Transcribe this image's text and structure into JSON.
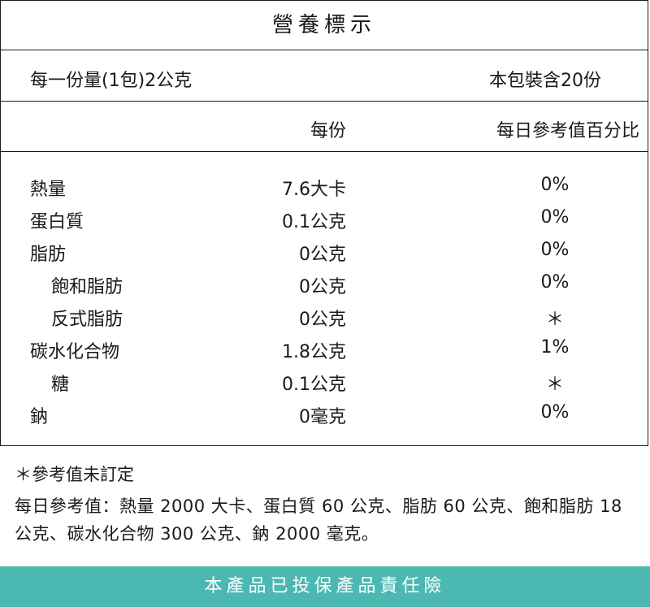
{
  "label": {
    "title": "營養標示",
    "serving_size": "每一份量(1包)2公克",
    "servings_per_package": "本包裝含20份",
    "col_per_serving": "每份",
    "col_daily_value": "每日參考值百分比",
    "nutrients": [
      {
        "name": "熱量",
        "amount": "7.6大卡",
        "dv": "0%",
        "indent": false
      },
      {
        "name": "蛋白質",
        "amount": "0.1公克",
        "dv": "0%",
        "indent": false
      },
      {
        "name": "脂肪",
        "amount": "0公克",
        "dv": "0%",
        "indent": false
      },
      {
        "name": "飽和脂肪",
        "amount": "0公克",
        "dv": "0%",
        "indent": true
      },
      {
        "name": "反式脂肪",
        "amount": "0公克",
        "dv": "＊",
        "indent": true
      },
      {
        "name": "碳水化合物",
        "amount": "1.8公克",
        "dv": "1%",
        "indent": false
      },
      {
        "name": "糖",
        "amount": "0.1公克",
        "dv": "＊",
        "indent": true
      },
      {
        "name": "鈉",
        "amount": "0毫克",
        "dv": "0%",
        "indent": false
      }
    ]
  },
  "notes": {
    "asterisk_note": "＊參考值未訂定",
    "daily_value_note": "每日參考值：熱量 2000 大卡、蛋白質 60 公克、脂肪 60 公克、飽和脂肪 18 公克、碳水化合物 300 公克、鈉 2000 毫克。"
  },
  "banner": {
    "text": "本產品已投保產品責任險"
  },
  "colors": {
    "banner_bg": "#4bb8b2",
    "text": "#1a1a1a",
    "border": "#1a1a1a"
  }
}
